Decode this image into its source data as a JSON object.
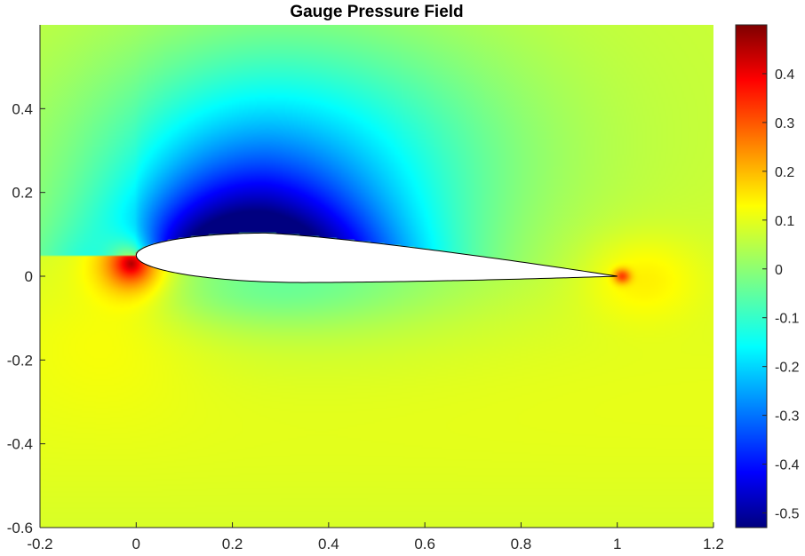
{
  "chart_data": {
    "type": "heatmap",
    "title": "Gauge Pressure Field",
    "xlabel": "",
    "ylabel": "",
    "xlim": [
      -0.2,
      1.2
    ],
    "ylim": [
      -0.6,
      0.6
    ],
    "x_ticks": [
      -0.2,
      0,
      0.2,
      0.4,
      0.6,
      0.8,
      1,
      1.2
    ],
    "x_tick_labels": [
      "-0.2",
      "0",
      "0.2",
      "0.4",
      "0.6",
      "0.8",
      "1",
      "1.2"
    ],
    "y_ticks": [
      -0.6,
      -0.4,
      -0.2,
      0,
      0.2,
      0.4
    ],
    "y_tick_labels": [
      "-0.6",
      "-0.4",
      "-0.2",
      "0",
      "0.2",
      "0.4"
    ],
    "colormap": "jet",
    "colorbar": {
      "range": [
        -0.53,
        0.5
      ],
      "ticks": [
        0.4,
        0.3,
        0.2,
        0.1,
        0,
        -0.1,
        -0.2,
        -0.3,
        -0.4,
        -0.5
      ],
      "tick_labels": [
        "0.4",
        "0.3",
        "0.2",
        "0.1",
        "0",
        "-0.1",
        "-0.2",
        "-0.3",
        "-0.4",
        "-0.5"
      ],
      "placement": "right"
    },
    "field": {
      "freestream_value": 0.06,
      "features": [
        {
          "name": "leading-edge stagnation",
          "x": -0.01,
          "y": 0.03,
          "peak": 0.45
        },
        {
          "name": "upper-surface suction",
          "x": 0.22,
          "y": 0.13,
          "peak": -0.52
        },
        {
          "name": "trailing-edge stagnation",
          "x": 1.01,
          "y": 0.0,
          "peak": 0.25
        }
      ]
    },
    "airfoil": {
      "leading_edge": [
        0,
        0.05
      ],
      "trailing_edge": [
        1.0,
        0.0
      ],
      "max_thickness_x": 0.27,
      "upper_max_y": 0.103,
      "lower_min_y": -0.015
    },
    "grid": false,
    "legend": "none"
  }
}
